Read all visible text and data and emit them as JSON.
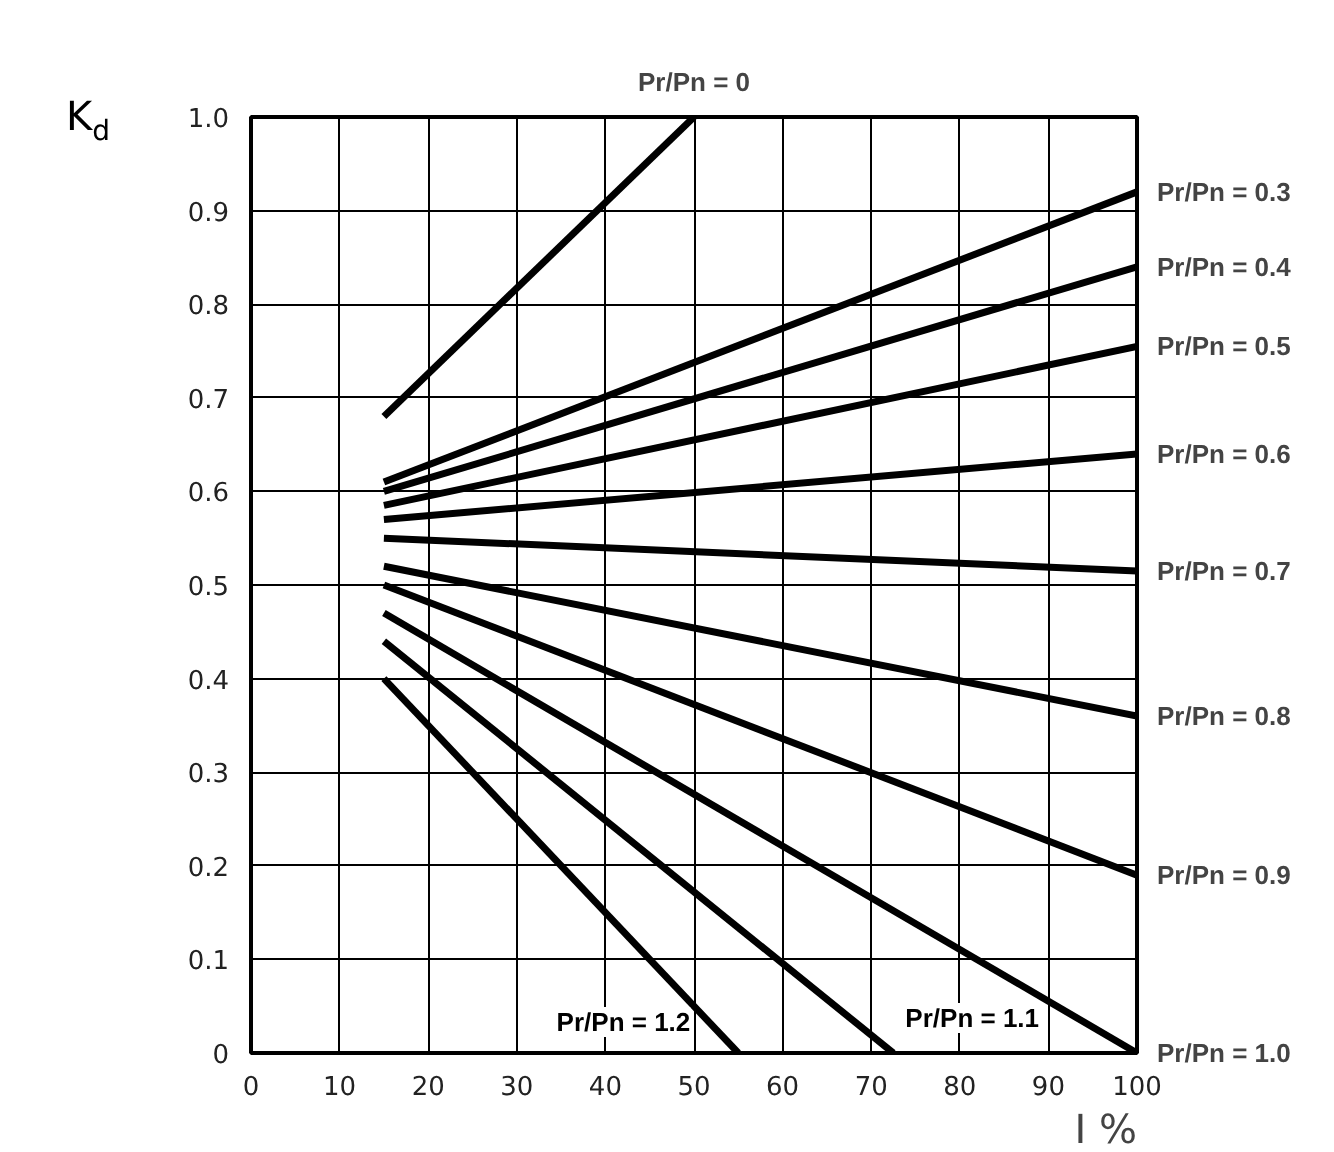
{
  "chart_data": {
    "type": "line",
    "xlabel": "I %",
    "ylabel": "K$_{d}$",
    "xlim": [
      0,
      100
    ],
    "ylim": [
      0,
      1.0
    ],
    "xticks": [
      0,
      10,
      20,
      30,
      40,
      50,
      60,
      70,
      80,
      90,
      100
    ],
    "yticks": [
      0,
      0.1,
      0.2,
      0.3,
      0.4,
      0.5,
      0.6,
      0.7,
      0.8,
      0.9,
      {
        "value": 1.0,
        "label": "1.0"
      }
    ],
    "grid": true,
    "marker": "none",
    "line_style": "solid",
    "series": [
      {
        "name": "Pr/Pn = 0",
        "color": "#000000",
        "x": [
          15,
          50
        ],
        "values": [
          0.68,
          1.0
        ]
      },
      {
        "name": "Pr/Pn = 0.3",
        "color": "#000000",
        "x": [
          15,
          100
        ],
        "values": [
          0.61,
          0.92
        ]
      },
      {
        "name": "Pr/Pn = 0.4",
        "color": "#000000",
        "x": [
          15,
          100
        ],
        "values": [
          0.6,
          0.84
        ]
      },
      {
        "name": "Pr/Pn = 0.5",
        "color": "#000000",
        "x": [
          15,
          100
        ],
        "values": [
          0.585,
          0.755
        ]
      },
      {
        "name": "Pr/Pn = 0.6",
        "color": "#000000",
        "x": [
          15,
          100
        ],
        "values": [
          0.57,
          0.64
        ]
      },
      {
        "name": "Pr/Pn = 0.7",
        "color": "#000000",
        "x": [
          15,
          100
        ],
        "values": [
          0.55,
          0.515
        ]
      },
      {
        "name": "Pr/Pn = 0.8",
        "color": "#000000",
        "x": [
          15,
          100
        ],
        "values": [
          0.52,
          0.36
        ]
      },
      {
        "name": "Pr/Pn = 0.9",
        "color": "#000000",
        "x": [
          15,
          100
        ],
        "values": [
          0.5,
          0.19
        ]
      },
      {
        "name": "Pr/Pn = 1.0",
        "color": "#000000",
        "x": [
          15,
          100
        ],
        "values": [
          0.47,
          0.0
        ]
      },
      {
        "name": "Pr/Pn = 1.1",
        "color": "#000000",
        "x": [
          15,
          72.5
        ],
        "values": [
          0.44,
          0.0
        ]
      },
      {
        "name": "Pr/Pn = 1.2",
        "color": "#000000",
        "x": [
          15,
          55
        ],
        "values": [
          0.4,
          0.0
        ]
      }
    ]
  }
}
